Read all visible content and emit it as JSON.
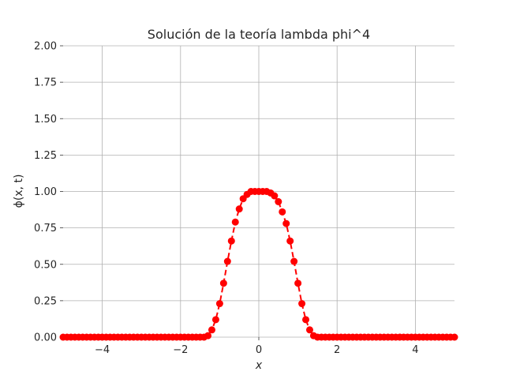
{
  "chart_data": {
    "type": "line",
    "title": "Solución de la teoría lambda phi^4",
    "xlabel": "x",
    "ylabel": "ϕ(x, t)",
    "xlim": [
      -5,
      5
    ],
    "ylim": [
      0,
      2
    ],
    "grid": true,
    "x_ticks": [
      -4,
      -2,
      0,
      2,
      4
    ],
    "x_tick_labels": [
      "−4",
      "−2",
      "0",
      "2",
      "4"
    ],
    "y_ticks": [
      0,
      0.25,
      0.5,
      0.75,
      1.0,
      1.25,
      1.5,
      1.75,
      2.0
    ],
    "y_tick_labels": [
      "0.00",
      "0.25",
      "0.50",
      "0.75",
      "1.00",
      "1.25",
      "1.50",
      "1.75",
      "2.00"
    ],
    "series": [
      {
        "style": "dashed line with circle markers",
        "color": "#ff0000",
        "x": [
          -5.0,
          -4.9,
          -4.8,
          -4.7,
          -4.6,
          -4.5,
          -4.4,
          -4.3,
          -4.2,
          -4.1,
          -4.0,
          -3.9,
          -3.8,
          -3.7,
          -3.6,
          -3.5,
          -3.4,
          -3.3,
          -3.2,
          -3.1,
          -3.0,
          -2.9,
          -2.8,
          -2.7,
          -2.6,
          -2.5,
          -2.4,
          -2.3,
          -2.2,
          -2.1,
          -2.0,
          -1.9,
          -1.8,
          -1.7,
          -1.6,
          -1.5,
          -1.4,
          -1.3,
          -1.2,
          -1.1,
          -1.0,
          -0.9,
          -0.8,
          -0.7,
          -0.6,
          -0.5,
          -0.4,
          -0.3,
          -0.2,
          -0.1,
          0.0,
          0.1,
          0.2,
          0.3,
          0.4,
          0.5,
          0.6,
          0.7,
          0.8,
          0.9,
          1.0,
          1.1,
          1.2,
          1.3,
          1.4,
          1.5,
          1.6,
          1.7,
          1.8,
          1.9,
          2.0,
          2.1,
          2.2,
          2.3,
          2.4,
          2.5,
          2.6,
          2.7,
          2.8,
          2.9,
          3.0,
          3.1,
          3.2,
          3.3,
          3.4,
          3.5,
          3.6,
          3.7,
          3.8,
          3.9,
          4.0,
          4.1,
          4.2,
          4.3,
          4.4,
          4.5,
          4.6,
          4.7,
          4.8,
          4.9,
          5.0
        ],
        "y": [
          0,
          0,
          0,
          0,
          0,
          0,
          0,
          0,
          0,
          0,
          0,
          0,
          0,
          0,
          0,
          0,
          0,
          0,
          0,
          0,
          0,
          0,
          0,
          0,
          0,
          0,
          0,
          0,
          0,
          0,
          0,
          0,
          0,
          0,
          0,
          0,
          0,
          0.01,
          0.05,
          0.12,
          0.23,
          0.37,
          0.52,
          0.66,
          0.79,
          0.88,
          0.95,
          0.98,
          1.0,
          1.0,
          1.0,
          1.0,
          1.0,
          0.99,
          0.97,
          0.93,
          0.86,
          0.78,
          0.66,
          0.52,
          0.37,
          0.23,
          0.12,
          0.05,
          0.01,
          0,
          0,
          0,
          0,
          0,
          0,
          0,
          0,
          0,
          0,
          0,
          0,
          0,
          0,
          0,
          0,
          0,
          0,
          0,
          0,
          0,
          0,
          0,
          0,
          0,
          0,
          0,
          0,
          0,
          0,
          0,
          0,
          0,
          0,
          0,
          0
        ]
      }
    ]
  }
}
